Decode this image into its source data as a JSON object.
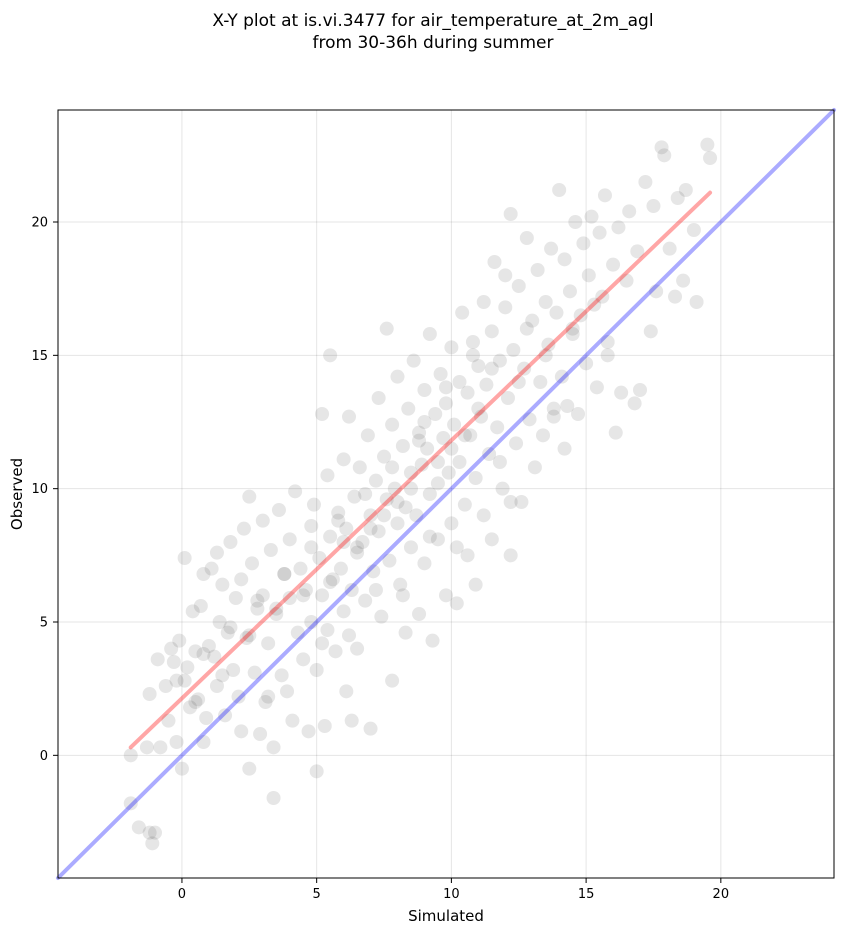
{
  "chart_data": {
    "type": "scatter",
    "title": [
      "X-Y plot at is.vi.3477 for air_temperature_at_2m_agl",
      "from 30-36h during summer"
    ],
    "xlabel": "Simulated",
    "ylabel": "Observed",
    "xlim": [
      -4.6,
      24.2
    ],
    "ylim": [
      -4.6,
      24.2
    ],
    "xticks": [
      0,
      5,
      10,
      15,
      20
    ],
    "yticks": [
      0,
      5,
      10,
      15,
      20
    ],
    "grid": true,
    "legend": "none",
    "point_color": "#333333",
    "point_opacity": 0.12,
    "reference_line": {
      "name": "1:1",
      "color": "#0000ff",
      "opacity": 0.33,
      "from": [
        -4.6,
        -4.6
      ],
      "to": [
        24.2,
        24.2
      ]
    },
    "fit_line": {
      "color": "#ff0000",
      "opacity": 0.35,
      "from": [
        -1.9,
        0.3
      ],
      "to": [
        19.6,
        21.1
      ]
    },
    "points": [
      [
        -1.9,
        0.0
      ],
      [
        -1.9,
        -1.8
      ],
      [
        -1.6,
        -2.7
      ],
      [
        -1.2,
        -2.9
      ],
      [
        -1.1,
        -3.3
      ],
      [
        -1.0,
        -2.9
      ],
      [
        -1.3,
        0.3
      ],
      [
        -1.2,
        2.3
      ],
      [
        -0.9,
        3.6
      ],
      [
        -0.8,
        0.3
      ],
      [
        -0.6,
        2.6
      ],
      [
        -0.5,
        1.3
      ],
      [
        -0.4,
        4.0
      ],
      [
        -0.3,
        3.5
      ],
      [
        -0.2,
        0.5
      ],
      [
        -0.1,
        4.3
      ],
      [
        0.0,
        -0.5
      ],
      [
        0.1,
        2.8
      ],
      [
        0.1,
        7.4
      ],
      [
        0.2,
        3.3
      ],
      [
        0.3,
        1.8
      ],
      [
        0.4,
        5.4
      ],
      [
        0.5,
        3.9
      ],
      [
        0.6,
        2.1
      ],
      [
        0.7,
        5.6
      ],
      [
        0.8,
        0.5
      ],
      [
        0.8,
        6.8
      ],
      [
        0.9,
        1.4
      ],
      [
        1.0,
        4.1
      ],
      [
        1.1,
        7.0
      ],
      [
        1.2,
        3.7
      ],
      [
        1.3,
        2.6
      ],
      [
        1.3,
        7.6
      ],
      [
        1.4,
        5.0
      ],
      [
        1.5,
        6.4
      ],
      [
        1.6,
        1.5
      ],
      [
        1.7,
        4.6
      ],
      [
        1.8,
        8.0
      ],
      [
        1.9,
        3.2
      ],
      [
        2.0,
        5.9
      ],
      [
        2.1,
        2.2
      ],
      [
        2.2,
        6.6
      ],
      [
        2.2,
        0.9
      ],
      [
        2.3,
        8.5
      ],
      [
        2.4,
        4.4
      ],
      [
        2.5,
        9.7
      ],
      [
        2.5,
        -0.5
      ],
      [
        2.6,
        7.2
      ],
      [
        2.7,
        3.1
      ],
      [
        2.8,
        5.5
      ],
      [
        2.9,
        0.8
      ],
      [
        3.0,
        6.0
      ],
      [
        3.0,
        8.8
      ],
      [
        3.1,
        2.0
      ],
      [
        3.2,
        4.2
      ],
      [
        3.3,
        7.7
      ],
      [
        3.4,
        0.3
      ],
      [
        3.4,
        -1.6
      ],
      [
        3.5,
        5.3
      ],
      [
        3.6,
        9.2
      ],
      [
        3.7,
        3.0
      ],
      [
        3.8,
        6.8
      ],
      [
        3.9,
        2.4
      ],
      [
        4.0,
        5.9
      ],
      [
        4.0,
        8.1
      ],
      [
        4.1,
        1.3
      ],
      [
        4.2,
        9.9
      ],
      [
        4.3,
        4.6
      ],
      [
        4.4,
        7.0
      ],
      [
        4.5,
        3.6
      ],
      [
        4.6,
        6.2
      ],
      [
        4.7,
        0.9
      ],
      [
        4.8,
        8.6
      ],
      [
        4.8,
        5.0
      ],
      [
        4.9,
        9.4
      ],
      [
        5.0,
        3.2
      ],
      [
        5.0,
        -0.6
      ],
      [
        5.1,
        7.4
      ],
      [
        5.2,
        6.0
      ],
      [
        5.2,
        12.8
      ],
      [
        5.3,
        1.1
      ],
      [
        5.4,
        4.7
      ],
      [
        5.4,
        10.5
      ],
      [
        5.5,
        8.2
      ],
      [
        5.5,
        15.0
      ],
      [
        5.6,
        6.6
      ],
      [
        5.7,
        3.9
      ],
      [
        5.8,
        9.1
      ],
      [
        5.9,
        7.0
      ],
      [
        6.0,
        11.1
      ],
      [
        6.0,
        5.4
      ],
      [
        6.1,
        2.4
      ],
      [
        6.1,
        8.5
      ],
      [
        6.2,
        12.7
      ],
      [
        6.3,
        6.2
      ],
      [
        6.3,
        1.3
      ],
      [
        6.4,
        9.7
      ],
      [
        6.5,
        7.6
      ],
      [
        6.5,
        4.0
      ],
      [
        6.6,
        10.8
      ],
      [
        6.7,
        8.0
      ],
      [
        6.8,
        5.8
      ],
      [
        6.9,
        12.0
      ],
      [
        7.0,
        9.0
      ],
      [
        7.0,
        1.0
      ],
      [
        7.1,
        6.9
      ],
      [
        7.2,
        10.3
      ],
      [
        7.3,
        8.4
      ],
      [
        7.3,
        13.4
      ],
      [
        7.4,
        5.2
      ],
      [
        7.5,
        11.2
      ],
      [
        7.6,
        9.6
      ],
      [
        7.6,
        16.0
      ],
      [
        7.7,
        7.3
      ],
      [
        7.8,
        12.4
      ],
      [
        7.8,
        2.8
      ],
      [
        7.9,
        10.0
      ],
      [
        8.0,
        8.7
      ],
      [
        8.0,
        14.2
      ],
      [
        8.1,
        6.4
      ],
      [
        8.2,
        11.6
      ],
      [
        8.3,
        9.3
      ],
      [
        8.3,
        4.6
      ],
      [
        8.4,
        13.0
      ],
      [
        8.5,
        10.6
      ],
      [
        8.5,
        7.8
      ],
      [
        8.6,
        14.8
      ],
      [
        8.7,
        9.0
      ],
      [
        8.8,
        12.1
      ],
      [
        8.8,
        5.3
      ],
      [
        8.9,
        10.9
      ],
      [
        9.0,
        13.7
      ],
      [
        9.0,
        7.2
      ],
      [
        9.1,
        11.5
      ],
      [
        9.2,
        15.8
      ],
      [
        9.2,
        9.8
      ],
      [
        9.3,
        4.3
      ],
      [
        9.4,
        12.8
      ],
      [
        9.5,
        10.2
      ],
      [
        9.5,
        8.1
      ],
      [
        9.6,
        14.3
      ],
      [
        9.7,
        11.9
      ],
      [
        9.8,
        6.0
      ],
      [
        9.8,
        13.2
      ],
      [
        9.9,
        10.6
      ],
      [
        10.0,
        15.3
      ],
      [
        10.0,
        8.7
      ],
      [
        10.1,
        12.4
      ],
      [
        10.2,
        5.7
      ],
      [
        10.3,
        14.0
      ],
      [
        10.3,
        11.0
      ],
      [
        10.4,
        16.6
      ],
      [
        10.5,
        9.4
      ],
      [
        10.6,
        13.6
      ],
      [
        10.6,
        7.5
      ],
      [
        10.7,
        12.0
      ],
      [
        10.8,
        15.5
      ],
      [
        10.9,
        10.4
      ],
      [
        10.9,
        6.4
      ],
      [
        11.0,
        14.6
      ],
      [
        11.1,
        12.7
      ],
      [
        11.2,
        17.0
      ],
      [
        11.2,
        9.0
      ],
      [
        11.3,
        13.9
      ],
      [
        11.4,
        11.3
      ],
      [
        11.5,
        15.9
      ],
      [
        11.5,
        8.1
      ],
      [
        11.6,
        18.5
      ],
      [
        11.7,
        12.3
      ],
      [
        11.8,
        14.8
      ],
      [
        11.9,
        10.0
      ],
      [
        12.0,
        16.8
      ],
      [
        12.1,
        13.4
      ],
      [
        12.2,
        20.3
      ],
      [
        12.2,
        7.5
      ],
      [
        12.3,
        15.2
      ],
      [
        12.4,
        11.7
      ],
      [
        12.5,
        17.6
      ],
      [
        12.6,
        9.5
      ],
      [
        12.7,
        14.5
      ],
      [
        12.8,
        19.4
      ],
      [
        12.9,
        12.6
      ],
      [
        13.0,
        16.3
      ],
      [
        13.1,
        10.8
      ],
      [
        13.2,
        18.2
      ],
      [
        13.3,
        14.0
      ],
      [
        13.4,
        12.0
      ],
      [
        13.5,
        17.0
      ],
      [
        13.6,
        15.4
      ],
      [
        13.7,
        19.0
      ],
      [
        13.8,
        12.7
      ],
      [
        13.9,
        16.6
      ],
      [
        14.0,
        21.2
      ],
      [
        14.1,
        14.2
      ],
      [
        14.2,
        18.6
      ],
      [
        14.3,
        13.1
      ],
      [
        14.4,
        17.4
      ],
      [
        14.5,
        15.8
      ],
      [
        14.6,
        20.0
      ],
      [
        14.7,
        12.8
      ],
      [
        14.8,
        16.5
      ],
      [
        14.9,
        19.2
      ],
      [
        15.0,
        14.7
      ],
      [
        15.1,
        18.0
      ],
      [
        15.2,
        20.2
      ],
      [
        15.3,
        16.9
      ],
      [
        15.4,
        13.8
      ],
      [
        15.5,
        19.6
      ],
      [
        15.6,
        17.2
      ],
      [
        15.7,
        21.0
      ],
      [
        15.8,
        15.5
      ],
      [
        16.0,
        18.4
      ],
      [
        16.1,
        12.1
      ],
      [
        16.2,
        19.8
      ],
      [
        16.3,
        13.6
      ],
      [
        16.5,
        17.8
      ],
      [
        16.6,
        20.4
      ],
      [
        16.8,
        13.2
      ],
      [
        16.9,
        18.9
      ],
      [
        17.0,
        13.7
      ],
      [
        17.2,
        21.5
      ],
      [
        17.4,
        15.9
      ],
      [
        17.5,
        20.6
      ],
      [
        17.6,
        17.4
      ],
      [
        17.8,
        22.8
      ],
      [
        17.9,
        22.5
      ],
      [
        18.1,
        19.0
      ],
      [
        18.3,
        17.2
      ],
      [
        18.4,
        20.9
      ],
      [
        18.6,
        17.8
      ],
      [
        18.7,
        21.2
      ],
      [
        19.0,
        19.7
      ],
      [
        19.1,
        17.0
      ],
      [
        19.5,
        22.9
      ],
      [
        19.6,
        22.4
      ],
      [
        12.0,
        18.0
      ],
      [
        10.5,
        12.0
      ],
      [
        8.5,
        10.0
      ],
      [
        7.0,
        8.5
      ],
      [
        6.5,
        7.8
      ],
      [
        9.5,
        11.0
      ],
      [
        11.0,
        13.0
      ],
      [
        8.0,
        9.5
      ],
      [
        5.5,
        6.5
      ],
      [
        7.5,
        9.0
      ],
      [
        10.0,
        11.5
      ],
      [
        12.5,
        14.0
      ],
      [
        9.0,
        12.5
      ],
      [
        6.0,
        8.0
      ],
      [
        4.5,
        6.0
      ],
      [
        3.5,
        5.5
      ],
      [
        2.5,
        4.5
      ],
      [
        1.5,
        3.0
      ],
      [
        0.5,
        2.0
      ],
      [
        13.5,
        15.0
      ],
      [
        14.5,
        16.0
      ],
      [
        11.5,
        14.5
      ],
      [
        8.8,
        11.8
      ],
      [
        7.8,
        10.8
      ],
      [
        6.8,
        9.8
      ],
      [
        5.8,
        8.8
      ],
      [
        10.8,
        15.0
      ],
      [
        12.8,
        16.0
      ],
      [
        9.8,
        13.8
      ],
      [
        4.8,
        7.8
      ],
      [
        3.8,
        6.8
      ],
      [
        2.8,
        5.8
      ],
      [
        1.8,
        4.8
      ],
      [
        0.8,
        3.8
      ],
      [
        -0.2,
        2.8
      ],
      [
        11.8,
        11.0
      ],
      [
        13.8,
        13.0
      ],
      [
        15.8,
        15.0
      ],
      [
        9.2,
        8.2
      ],
      [
        7.2,
        6.2
      ],
      [
        5.2,
        4.2
      ],
      [
        3.2,
        2.2
      ],
      [
        14.2,
        11.5
      ],
      [
        12.2,
        9.5
      ],
      [
        10.2,
        7.8
      ],
      [
        8.2,
        6.0
      ],
      [
        6.2,
        4.5
      ]
    ]
  }
}
